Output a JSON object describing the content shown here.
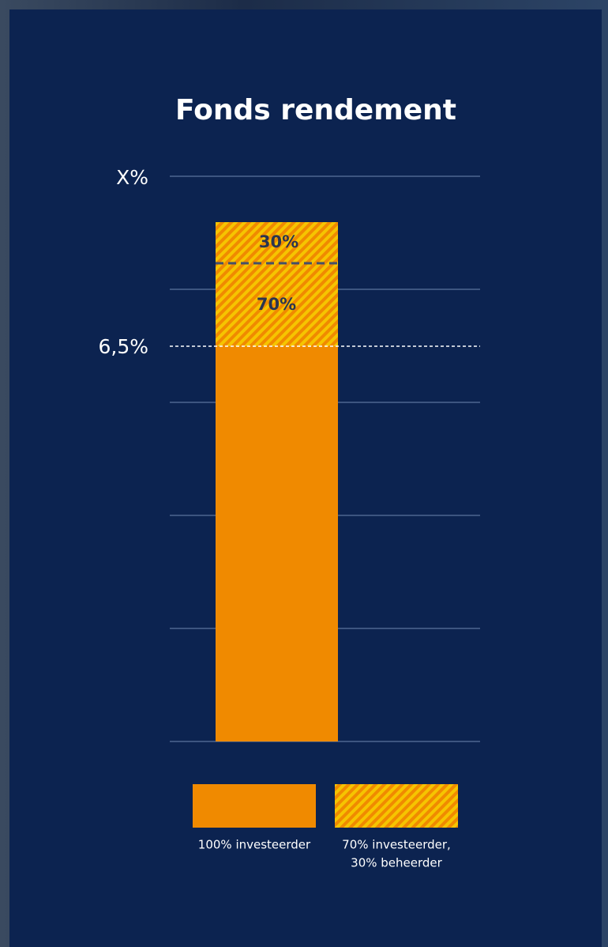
{
  "title": "Fonds rendement",
  "axis_labels": [
    "X%",
    "6,5%"
  ],
  "bar_labels": [
    "30%",
    "70%"
  ],
  "legend": [
    [
      "100% investeerder"
    ],
    [
      "70% investeerder,",
      "30% beheerder"
    ]
  ]
}
